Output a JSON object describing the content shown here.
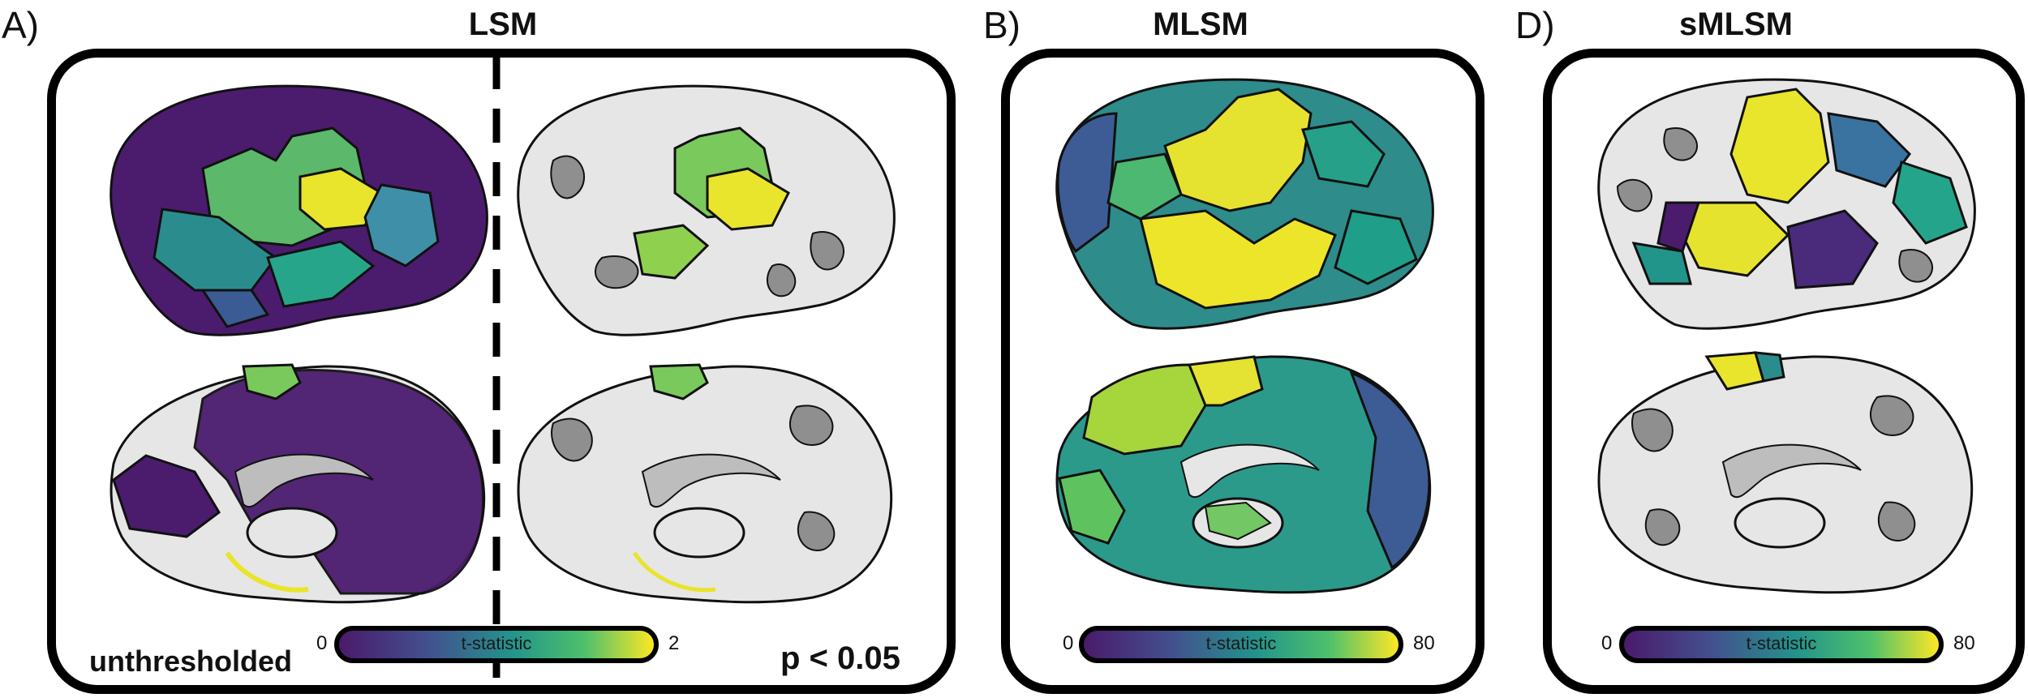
{
  "panels": {
    "a": {
      "letter": "A)",
      "title": "LSM",
      "left_caption": "unthresholded",
      "right_caption": "p < 0.05",
      "colorbar": {
        "min": "0",
        "max": "2",
        "label": "t-statistic"
      }
    },
    "b": {
      "letter": "B)",
      "title": "MLSM",
      "colorbar": {
        "min": "0",
        "max": "80",
        "label": "t-statistic"
      }
    },
    "d": {
      "letter": "D)",
      "title": "sMLSM",
      "colorbar": {
        "min": "0",
        "max": "80",
        "label": "t-statistic"
      }
    }
  },
  "colors": {
    "frame": "#000000",
    "cortex_light": "#e6e6e6",
    "cortex_dark": "#8f8f8f",
    "viridis": [
      "#440154",
      "#3b528b",
      "#21918c",
      "#5ec962",
      "#fde725"
    ]
  }
}
